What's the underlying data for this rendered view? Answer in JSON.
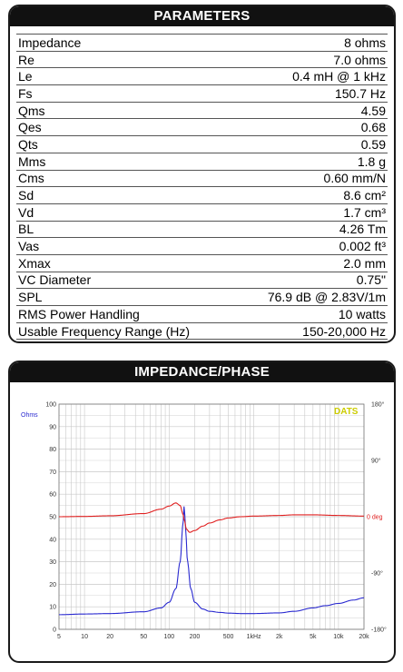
{
  "parameters": {
    "header": "PARAMETERS",
    "rows": [
      {
        "name": "Impedance",
        "value": "8 ohms"
      },
      {
        "name": "Re",
        "value": "7.0 ohms"
      },
      {
        "name": "Le",
        "value": "0.4 mH @ 1 kHz"
      },
      {
        "name": "Fs",
        "value": "150.7 Hz"
      },
      {
        "name": "Qms",
        "value": "4.59"
      },
      {
        "name": "Qes",
        "value": "0.68"
      },
      {
        "name": "Qts",
        "value": "0.59"
      },
      {
        "name": "Mms",
        "value": "1.8 g"
      },
      {
        "name": "Cms",
        "value": "0.60 mm/N"
      },
      {
        "name": "Sd",
        "value": "8.6 cm²"
      },
      {
        "name": "Vd",
        "value": "1.7 cm³"
      },
      {
        "name": "BL",
        "value": "4.26 Tm"
      },
      {
        "name": "Vas",
        "value": "0.002 ft³"
      },
      {
        "name": "Xmax",
        "value": "2.0 mm"
      },
      {
        "name": "VC Diameter",
        "value": "0.75\""
      },
      {
        "name": "SPL",
        "value": "76.9 dB @ 2.83V/1m"
      },
      {
        "name": "RMS Power Handling",
        "value": "10 watts"
      },
      {
        "name": "Usable Frequency Range (Hz)",
        "value": "150-20,000 Hz"
      }
    ]
  },
  "chart": {
    "header": "IMPEDANCE/PHASE",
    "brand": "DATS",
    "colors": {
      "impedance": "#2a2ad0",
      "phase": "#e02020",
      "grid": "#c8c8c8",
      "axis_text": "#333333",
      "brand": "#cccc00"
    }
  },
  "chart_data": {
    "type": "line",
    "x_scale": "log",
    "xlim": [
      5,
      20000
    ],
    "left_axis": {
      "label": "Ohms",
      "lim": [
        0,
        100
      ],
      "ticks": [
        "0",
        "10",
        "20",
        "30",
        "40",
        "50",
        "60",
        "70",
        "80",
        "90",
        "100"
      ]
    },
    "right_axis": {
      "label": "deg",
      "lim": [
        -180,
        180
      ],
      "ticks": [
        "180°",
        "90°",
        "0 deg",
        "-90°",
        "-180°"
      ]
    },
    "x_ticks": [
      {
        "v": 5,
        "label": "5"
      },
      {
        "v": 10,
        "label": "10"
      },
      {
        "v": 20,
        "label": "20"
      },
      {
        "v": 50,
        "label": "50"
      },
      {
        "v": 100,
        "label": "100"
      },
      {
        "v": 200,
        "label": "200"
      },
      {
        "v": 500,
        "label": "500"
      },
      {
        "v": 1000,
        "label": "1kHz"
      },
      {
        "v": 2000,
        "label": "2k"
      },
      {
        "v": 5000,
        "label": "5k"
      },
      {
        "v": 10000,
        "label": "10k"
      },
      {
        "v": 20000,
        "label": "20k"
      }
    ],
    "series": [
      {
        "axis": "left",
        "color": "#2a2ad0",
        "x": [
          5,
          10,
          20,
          50,
          80,
          100,
          120,
          135,
          145,
          150.7,
          156,
          165,
          180,
          200,
          250,
          300,
          400,
          500,
          700,
          1000,
          2000,
          3000,
          5000,
          7000,
          10000,
          15000,
          20000
        ],
        "y": [
          6.5,
          6.8,
          7.0,
          7.8,
          9.5,
          12,
          18,
          30,
          46,
          55,
          45,
          30,
          18,
          12,
          9,
          8,
          7.5,
          7.2,
          7.0,
          7.0,
          7.3,
          8,
          9.5,
          10.5,
          11.5,
          13,
          14
        ]
      },
      {
        "axis": "right",
        "color": "#e02020",
        "x": [
          5,
          10,
          20,
          50,
          80,
          100,
          120,
          135,
          145,
          150.7,
          160,
          175,
          200,
          250,
          300,
          400,
          500,
          700,
          1000,
          2000,
          3000,
          5000,
          10000,
          20000
        ],
        "y": [
          0,
          0.5,
          1.5,
          5,
          12,
          17,
          22,
          18,
          5,
          -5,
          -20,
          -25,
          -22,
          -15,
          -10,
          -5,
          -2,
          0,
          1,
          2,
          3,
          3,
          2,
          1
        ]
      }
    ]
  }
}
